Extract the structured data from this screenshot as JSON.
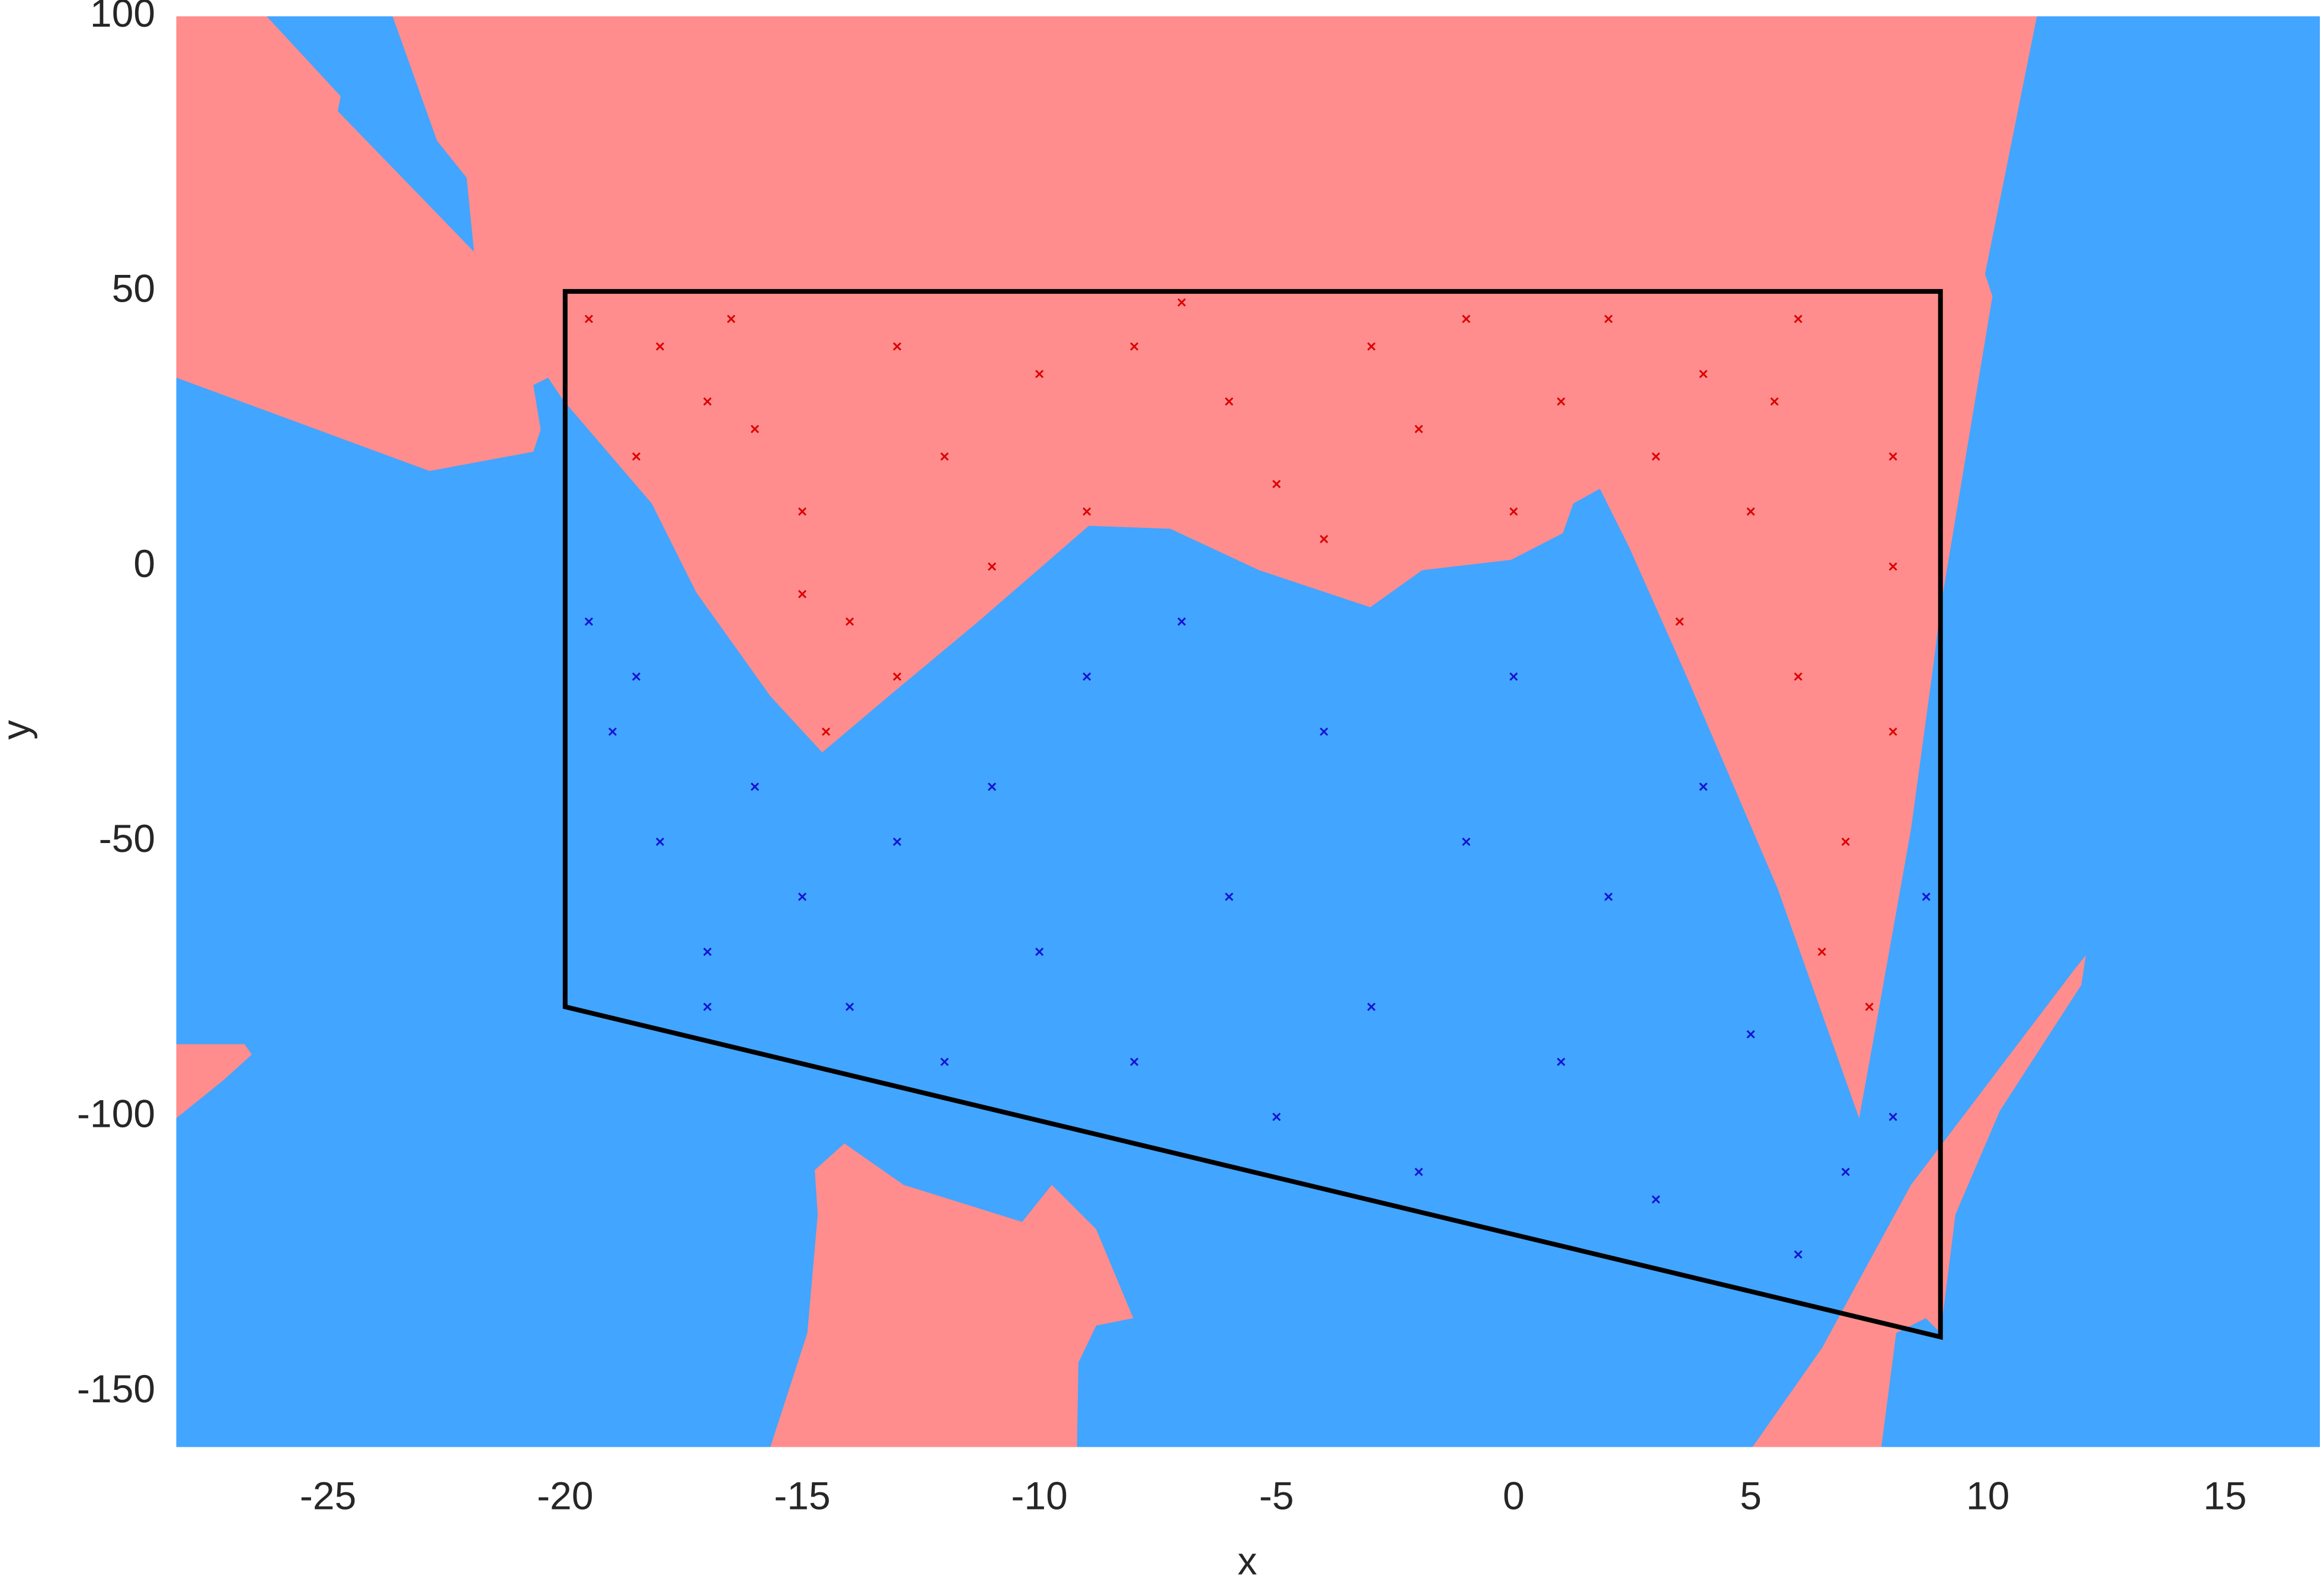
{
  "chart_data": {
    "type": "scatter",
    "xlabel": "x",
    "ylabel": "y",
    "xlim": [
      -28.2,
      17
    ],
    "ylim": [
      -160,
      100
    ],
    "xticks": [
      -25,
      -20,
      -15,
      -10,
      -5,
      0,
      5,
      10,
      15
    ],
    "yticks": [
      -150,
      -100,
      -50,
      0,
      50,
      100
    ],
    "grid": false,
    "polygon": {
      "color": "#000000",
      "x": [
        -20,
        9,
        9,
        -20
      ],
      "y": [
        50,
        50,
        -140,
        -80
      ]
    },
    "series": [
      {
        "color": "#dd0000",
        "x": [
          -19.5,
          -18,
          -17,
          -16,
          -15,
          -14,
          -13,
          -14.5,
          -12,
          -10,
          -8,
          -6,
          -5,
          -3,
          -2,
          0,
          1,
          2,
          3,
          4,
          5,
          6,
          7,
          7.5,
          8,
          8,
          6.5,
          5.5,
          -11,
          -9,
          -7,
          -4,
          -1,
          3.5,
          6,
          8,
          -18.5,
          -16.5,
          -13,
          -15
        ],
        "y": [
          45,
          40,
          30,
          25,
          10,
          -10,
          -20,
          -30,
          20,
          35,
          40,
          30,
          15,
          40,
          25,
          10,
          30,
          45,
          20,
          35,
          10,
          -20,
          -50,
          -80,
          0,
          -30,
          -70,
          30,
          0,
          10,
          48,
          5,
          45,
          -10,
          45,
          20,
          20,
          45,
          40,
          -5
        ]
      },
      {
        "color": "#1414d2",
        "x": [
          -19.5,
          -19,
          -18,
          -17,
          -16,
          -15,
          -14,
          -13,
          -12,
          -11,
          -10,
          -9,
          -8,
          -7,
          -6,
          -5,
          -4,
          -3,
          -2,
          -1,
          0,
          1,
          2,
          3,
          4,
          5,
          6,
          7,
          8,
          8.7,
          -18.5,
          -17
        ],
        "y": [
          -10,
          -30,
          -50,
          -70,
          -40,
          -60,
          -80,
          -50,
          -90,
          -40,
          -70,
          -20,
          -90,
          -10,
          -60,
          -100,
          -30,
          -80,
          -110,
          -50,
          -20,
          -90,
          -60,
          -115,
          -40,
          -85,
          -125,
          -110,
          -100,
          -60,
          -20,
          -80
        ]
      }
    ]
  }
}
